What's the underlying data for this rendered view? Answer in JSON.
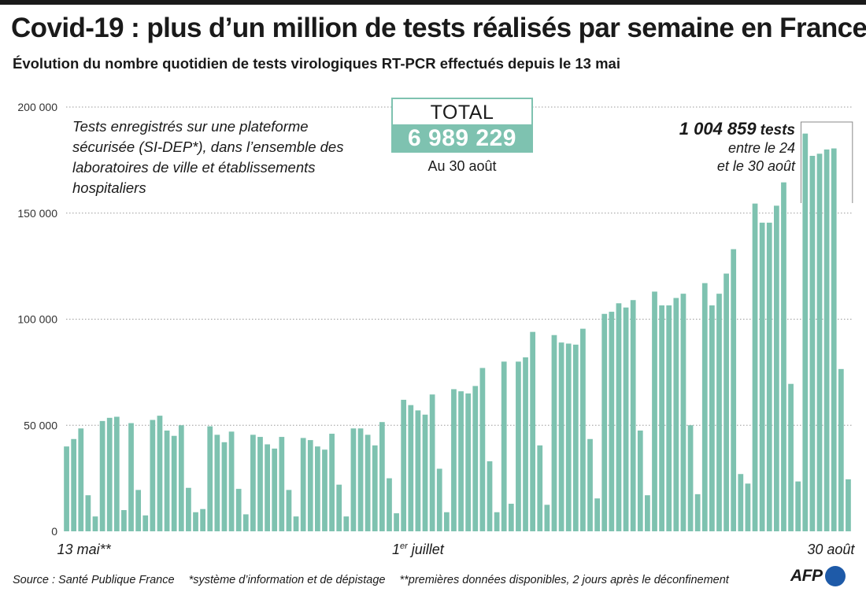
{
  "header": {
    "title": "Covid-19 : plus d’un million de tests réalisés par semaine en France",
    "subtitle": "Évolution du nombre quotidien de tests virologiques RT-PCR effectués depuis le 13 mai"
  },
  "annotations": {
    "note": "Tests enregistrés sur une plateforme sécurisée (SI-DEP*), dans l’ensemble des laboratoires de ville et établissements hospitaliers",
    "total_label": "TOTAL",
    "total_value": "6 989 229",
    "total_date": "Au 30 août",
    "week_total": "1 004 859",
    "week_unit": "tests",
    "week_line1": "entre le 24",
    "week_line2": "et le 30 août"
  },
  "footer": {
    "source": "Source : Santé Publique France",
    "note1": "*système d’information et de dépistage",
    "note2": "**premières données disponibles, 2 jours après le déconfinement",
    "logo_text": "AFP"
  },
  "colors": {
    "bar": "#7ec2b0",
    "grid": "#9a9a9a",
    "logo": "#1e5aa8"
  },
  "chart_data": {
    "type": "bar",
    "title": "",
    "xlabel": "",
    "ylabel": "",
    "ylim": [
      0,
      200000
    ],
    "yticks": [
      {
        "value": 0,
        "label": "0"
      },
      {
        "value": 50000,
        "label": "50 000"
      },
      {
        "value": 100000,
        "label": "100 000"
      },
      {
        "value": 150000,
        "label": "150 000"
      },
      {
        "value": 200000,
        "label": "200 000"
      }
    ],
    "xticks": [
      {
        "index": 0,
        "label": "13 mai**"
      },
      {
        "index": 49,
        "label": "1er juillet",
        "main": "1",
        "sup": "er",
        "rest": " juillet"
      },
      {
        "index": 109,
        "label": "30 août"
      }
    ],
    "grid": true,
    "bracket": {
      "from_index": 103,
      "to_index": 109
    },
    "start": "13 mai",
    "end": "30 août",
    "values": [
      40000,
      43500,
      48500,
      17000,
      7000,
      52000,
      53500,
      54000,
      10000,
      51000,
      19500,
      7500,
      52500,
      54500,
      47500,
      45000,
      50000,
      20500,
      9000,
      10500,
      49500,
      45500,
      42000,
      47000,
      20000,
      8000,
      45500,
      44500,
      41000,
      39000,
      44500,
      19500,
      7000,
      44000,
      43000,
      40000,
      38500,
      46000,
      22000,
      7000,
      48500,
      48500,
      45500,
      40500,
      51500,
      25000,
      8500,
      62000,
      59500,
      57000,
      55000,
      64500,
      29500,
      9000,
      67000,
      66000,
      65000,
      68500,
      77000,
      33000,
      9000,
      80000,
      13000,
      80000,
      82000,
      94000,
      40500,
      12500,
      92500,
      89000,
      88500,
      88000,
      95500,
      43500,
      15500,
      102500,
      103500,
      107500,
      105500,
      109000,
      47500,
      17000,
      113000,
      106500,
      106500,
      110000,
      112000,
      50000,
      17500,
      117000,
      106500,
      112000,
      121500,
      133000,
      27000,
      22500,
      154500,
      145500,
      145500,
      153500,
      164500,
      69500,
      23500,
      187500,
      177000,
      178000,
      180000,
      180500,
      76500,
      24500
    ]
  }
}
